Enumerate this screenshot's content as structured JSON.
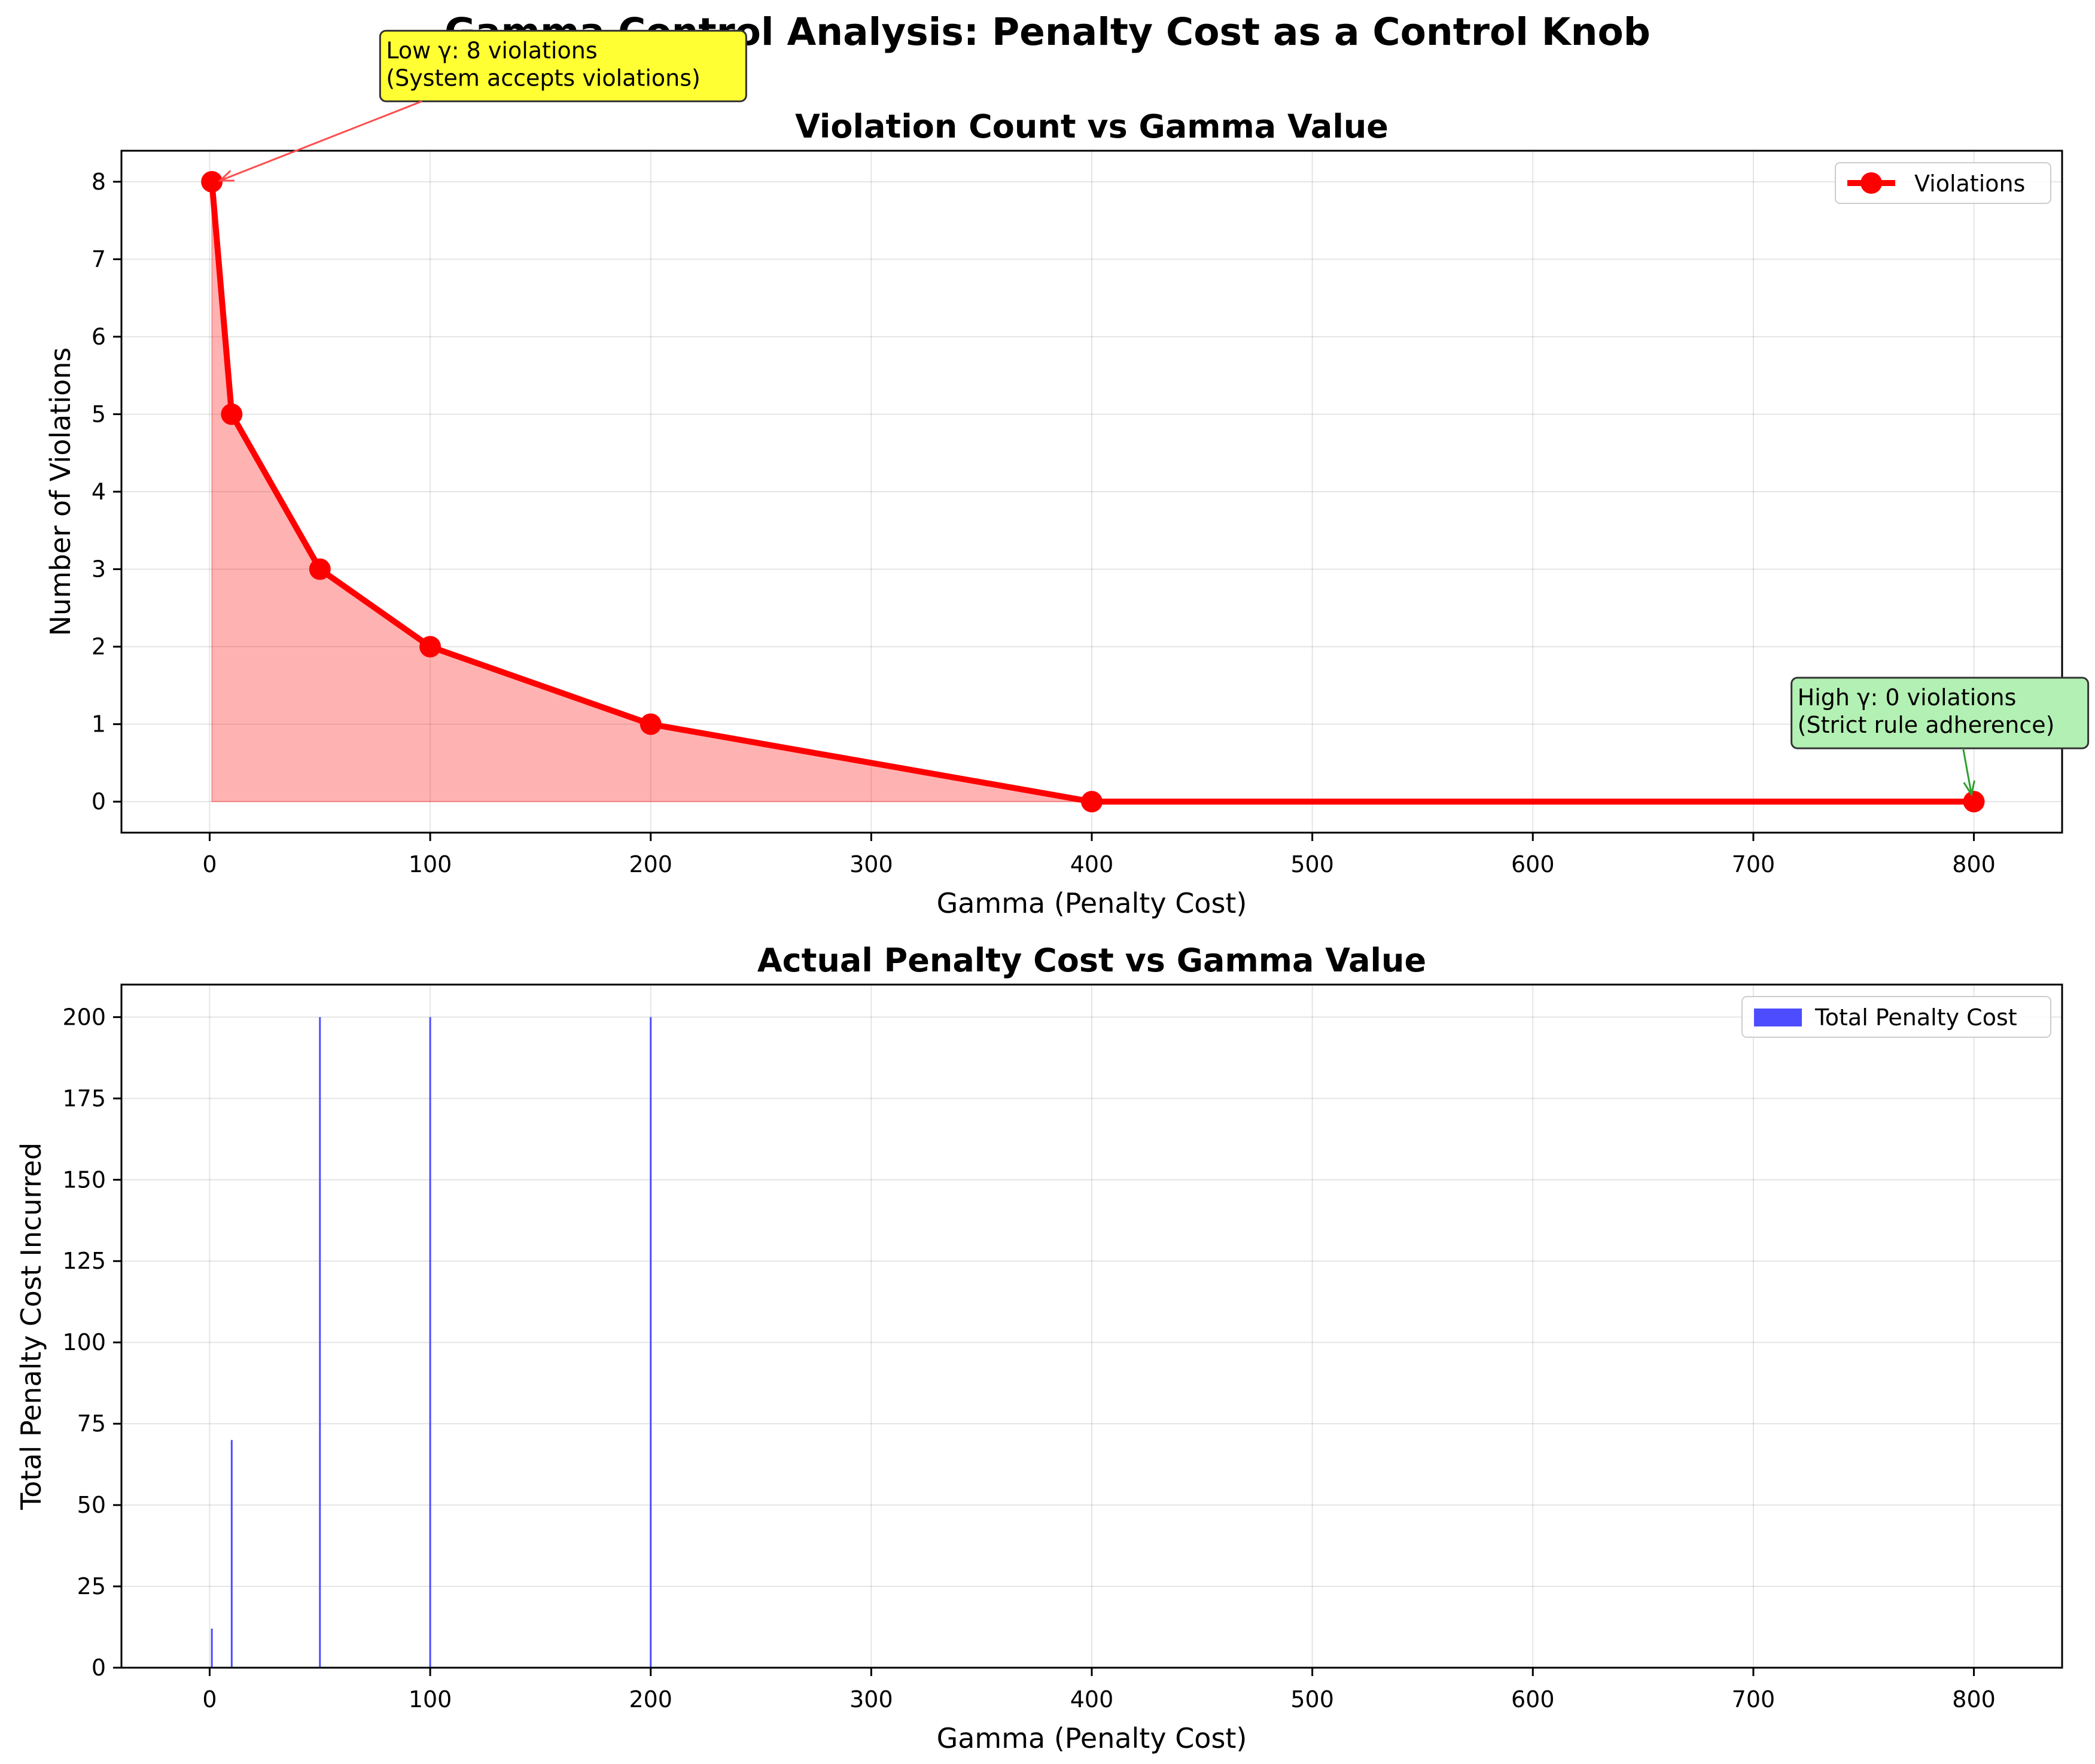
{
  "figure": {
    "suptitle": "Gamma Control Analysis: Penalty Cost as a Control Knob"
  },
  "chart_data": [
    {
      "type": "line",
      "title": "Violation Count vs Gamma Value",
      "xlabel": "Gamma (Penalty Cost)",
      "ylabel": "Number of Violations",
      "xlim": [
        -40,
        840
      ],
      "ylim": [
        -0.4,
        8.4
      ],
      "xticks": [
        0,
        100,
        200,
        300,
        400,
        500,
        600,
        700,
        800
      ],
      "yticks": [
        0,
        1,
        2,
        3,
        4,
        5,
        6,
        7,
        8
      ],
      "grid": true,
      "legend_position": "upper right",
      "series": [
        {
          "name": "Violations",
          "color": "#ff0000",
          "fill_color": "#ff0000",
          "x": [
            1,
            10,
            50,
            100,
            200,
            400,
            800
          ],
          "y": [
            8,
            5,
            3,
            2,
            1,
            0,
            0
          ]
        }
      ],
      "annotations": [
        {
          "text_lines": [
            "Low γ: 8 violations",
            "(System accepts violations)"
          ],
          "point": [
            1,
            8
          ],
          "text_at": [
            80,
            9.1
          ],
          "box_color": "#ffff33",
          "arrow_color": "#ff4d4d"
        },
        {
          "text_lines": [
            "High γ: 0 violations",
            "(Strict rule adherence)"
          ],
          "point": [
            800,
            0
          ],
          "text_at": [
            720,
            0.75
          ],
          "box_color": "#b3f0b3",
          "arrow_color": "#2ca02c"
        }
      ]
    },
    {
      "type": "bar",
      "title": "Actual Penalty Cost vs Gamma Value",
      "xlabel": "Gamma (Penalty Cost)",
      "ylabel": "Total Penalty Cost Incurred",
      "xlim": [
        -40,
        840
      ],
      "ylim": [
        0,
        210
      ],
      "xticks": [
        0,
        100,
        200,
        300,
        400,
        500,
        600,
        700,
        800
      ],
      "yticks": [
        0,
        25,
        50,
        75,
        100,
        125,
        150,
        175,
        200
      ],
      "grid": true,
      "legend_position": "upper right",
      "series": [
        {
          "name": "Total Penalty Cost",
          "color": "#4d4dff",
          "x": [
            1,
            10,
            50,
            100,
            200,
            400,
            800
          ],
          "values": [
            12,
            70,
            200,
            200,
            200,
            0,
            0
          ]
        }
      ]
    }
  ]
}
